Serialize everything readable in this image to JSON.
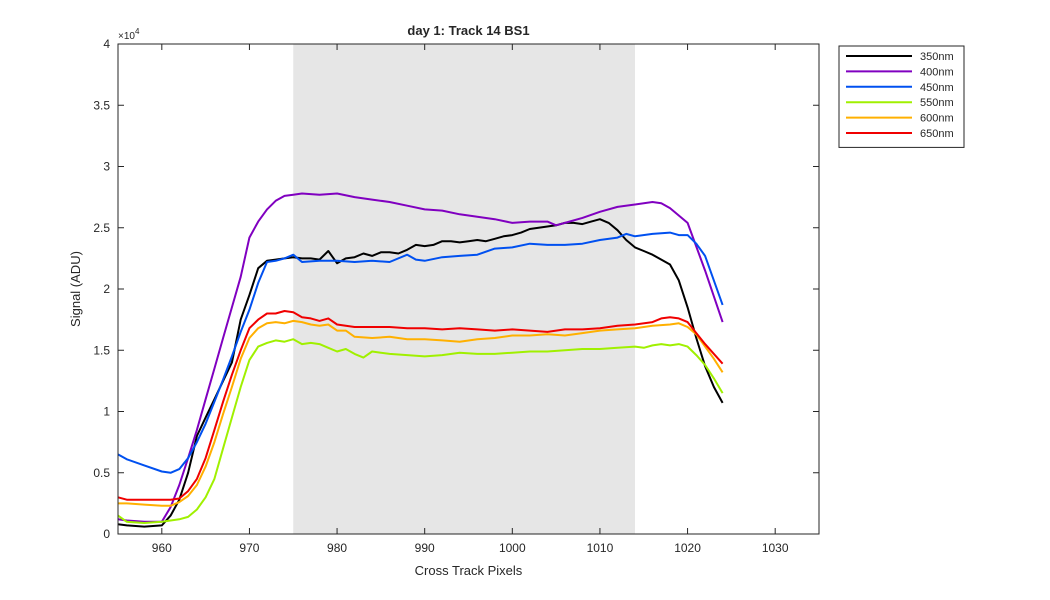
{
  "chart_data": {
    "type": "line",
    "title": "day 1: Track 14  BS1",
    "xlabel": "Cross Track Pixels",
    "ylabel": "Signal (ADU)",
    "xlim": [
      955,
      1035
    ],
    "ylim": [
      0,
      40000
    ],
    "xticks": [
      960,
      970,
      980,
      990,
      1000,
      1010,
      1020,
      1030
    ],
    "xtick_labels": [
      "960",
      "970",
      "980",
      "990",
      "1000",
      "1010",
      "1020",
      "1030"
    ],
    "yticks": [
      0,
      5000,
      10000,
      15000,
      20000,
      25000,
      30000,
      35000,
      40000
    ],
    "ytick_labels": [
      "0",
      "0.5",
      "1",
      "1.5",
      "2",
      "2.5",
      "3",
      "3.5",
      "4"
    ],
    "y_exponent_label": "×10",
    "y_exponent_power": "4",
    "grid": false,
    "legend_position": "outside-top-right",
    "shaded_region": {
      "x0": 975,
      "x1": 1014,
      "color": "#e6e6e6"
    },
    "series": [
      {
        "name": "350nm",
        "color": "#000000",
        "x": [
          955,
          956,
          958,
          960,
          961,
          962,
          963,
          964,
          965,
          966,
          967,
          968,
          969,
          970,
          971,
          972,
          973,
          974,
          975,
          976,
          977,
          978,
          979,
          980,
          981,
          982,
          983,
          984,
          985,
          986,
          987,
          988,
          989,
          990,
          991,
          992,
          993,
          994,
          995,
          996,
          997,
          998,
          999,
          1000,
          1001,
          1002,
          1003,
          1004,
          1005,
          1006,
          1007,
          1008,
          1009,
          1010,
          1011,
          1012,
          1013,
          1014,
          1015,
          1016,
          1017,
          1018,
          1019,
          1020,
          1021,
          1022,
          1023,
          1024
        ],
        "values": [
          800,
          700,
          600,
          700,
          1500,
          2800,
          5000,
          8000,
          9500,
          11000,
          12500,
          14000,
          17500,
          19500,
          21700,
          22300,
          22400,
          22500,
          22600,
          22500,
          22500,
          22400,
          23100,
          22100,
          22500,
          22600,
          22900,
          22700,
          23000,
          23000,
          22900,
          23200,
          23600,
          23500,
          23600,
          23900,
          23900,
          23800,
          23900,
          24000,
          23900,
          24100,
          24300,
          24400,
          24600,
          24900,
          25000,
          25100,
          25200,
          25400,
          25400,
          25300,
          25500,
          25700,
          25400,
          24800,
          24000,
          23400,
          23100,
          22800,
          22400,
          22000,
          20700,
          18500,
          16000,
          13700,
          12000,
          10700
        ]
      },
      {
        "name": "400nm",
        "color": "#8000c0",
        "x": [
          955,
          956,
          958,
          960,
          961,
          962,
          963,
          964,
          965,
          966,
          967,
          968,
          969,
          970,
          971,
          972,
          973,
          974,
          975,
          976,
          978,
          980,
          982,
          984,
          986,
          988,
          990,
          992,
          994,
          996,
          998,
          1000,
          1002,
          1004,
          1005,
          1006,
          1008,
          1010,
          1012,
          1014,
          1016,
          1017,
          1018,
          1020,
          1022,
          1024
        ],
        "values": [
          1200,
          1100,
          1000,
          1000,
          2200,
          4000,
          6200,
          8500,
          11000,
          13500,
          16000,
          18500,
          21000,
          24200,
          25500,
          26500,
          27200,
          27600,
          27700,
          27800,
          27700,
          27800,
          27500,
          27300,
          27100,
          26800,
          26500,
          26400,
          26100,
          25900,
          25700,
          25400,
          25500,
          25500,
          25200,
          25400,
          25800,
          26300,
          26700,
          26900,
          27100,
          27000,
          26600,
          25400,
          21500,
          17300
        ]
      },
      {
        "name": "450nm",
        "color": "#0050f0",
        "x": [
          955,
          956,
          958,
          960,
          961,
          962,
          963,
          964,
          965,
          966,
          967,
          968,
          969,
          970,
          971,
          972,
          973,
          974,
          975,
          976,
          978,
          980,
          982,
          984,
          986,
          988,
          989,
          990,
          992,
          994,
          996,
          998,
          1000,
          1002,
          1004,
          1006,
          1008,
          1010,
          1012,
          1013,
          1014,
          1016,
          1018,
          1019,
          1020,
          1021,
          1022,
          1024
        ],
        "values": [
          6500,
          6100,
          5600,
          5100,
          5000,
          5300,
          6200,
          7500,
          9000,
          10800,
          12600,
          14500,
          16500,
          18300,
          20500,
          22200,
          22300,
          22500,
          22800,
          22200,
          22300,
          22300,
          22200,
          22300,
          22200,
          22800,
          22400,
          22300,
          22600,
          22700,
          22800,
          23300,
          23400,
          23700,
          23600,
          23600,
          23700,
          24000,
          24200,
          24500,
          24300,
          24500,
          24600,
          24400,
          24400,
          23700,
          22700,
          18700
        ]
      },
      {
        "name": "550nm",
        "color": "#a0f000",
        "x": [
          955,
          956,
          958,
          960,
          961,
          962,
          963,
          964,
          965,
          966,
          967,
          968,
          969,
          970,
          971,
          972,
          973,
          974,
          975,
          976,
          977,
          978,
          979,
          980,
          981,
          982,
          983,
          984,
          985,
          986,
          988,
          990,
          992,
          994,
          996,
          998,
          1000,
          1002,
          1004,
          1006,
          1008,
          1010,
          1012,
          1014,
          1015,
          1016,
          1017,
          1018,
          1019,
          1020,
          1021,
          1022,
          1023,
          1024
        ],
        "values": [
          1500,
          1000,
          900,
          1000,
          1100,
          1200,
          1400,
          2000,
          3000,
          4500,
          7000,
          9500,
          12000,
          14200,
          15300,
          15600,
          15800,
          15700,
          15900,
          15500,
          15600,
          15500,
          15200,
          14900,
          15100,
          14700,
          14400,
          14900,
          14800,
          14700,
          14600,
          14500,
          14600,
          14800,
          14700,
          14700,
          14800,
          14900,
          14900,
          15000,
          15100,
          15100,
          15200,
          15300,
          15200,
          15400,
          15500,
          15400,
          15500,
          15300,
          14600,
          13800,
          12700,
          11500
        ]
      },
      {
        "name": "600nm",
        "color": "#ffb000",
        "x": [
          955,
          956,
          958,
          960,
          961,
          962,
          963,
          964,
          965,
          966,
          967,
          968,
          969,
          970,
          971,
          972,
          973,
          974,
          975,
          976,
          977,
          978,
          979,
          980,
          981,
          982,
          984,
          986,
          988,
          990,
          992,
          994,
          996,
          998,
          1000,
          1002,
          1004,
          1006,
          1008,
          1010,
          1012,
          1014,
          1016,
          1018,
          1019,
          1020,
          1021,
          1022,
          1023,
          1024
        ],
        "values": [
          2500,
          2500,
          2400,
          2300,
          2300,
          2600,
          3100,
          4000,
          5500,
          7500,
          9800,
          12000,
          14300,
          16000,
          16800,
          17200,
          17300,
          17200,
          17400,
          17300,
          17100,
          17000,
          17100,
          16600,
          16600,
          16100,
          16000,
          16100,
          15900,
          15900,
          15800,
          15700,
          15900,
          16000,
          16200,
          16200,
          16300,
          16200,
          16400,
          16600,
          16700,
          16800,
          17000,
          17100,
          17200,
          16900,
          16300,
          15300,
          14300,
          13200
        ]
      },
      {
        "name": "650nm",
        "color": "#f00000",
        "x": [
          955,
          956,
          958,
          960,
          961,
          962,
          963,
          964,
          965,
          966,
          967,
          968,
          969,
          970,
          971,
          972,
          973,
          974,
          975,
          976,
          977,
          978,
          979,
          980,
          981,
          982,
          984,
          986,
          988,
          990,
          992,
          994,
          996,
          998,
          1000,
          1002,
          1004,
          1006,
          1008,
          1010,
          1012,
          1014,
          1016,
          1017,
          1018,
          1019,
          1020,
          1021,
          1022,
          1023,
          1024
        ],
        "values": [
          3000,
          2800,
          2800,
          2800,
          2800,
          2900,
          3500,
          4500,
          6200,
          8500,
          10800,
          13000,
          15000,
          16800,
          17500,
          18000,
          18000,
          18200,
          18100,
          17700,
          17600,
          17400,
          17600,
          17100,
          17000,
          16900,
          16900,
          16900,
          16800,
          16800,
          16700,
          16800,
          16700,
          16600,
          16700,
          16600,
          16500,
          16700,
          16700,
          16800,
          17000,
          17100,
          17300,
          17600,
          17700,
          17600,
          17300,
          16400,
          15500,
          14700,
          13900
        ]
      }
    ]
  }
}
